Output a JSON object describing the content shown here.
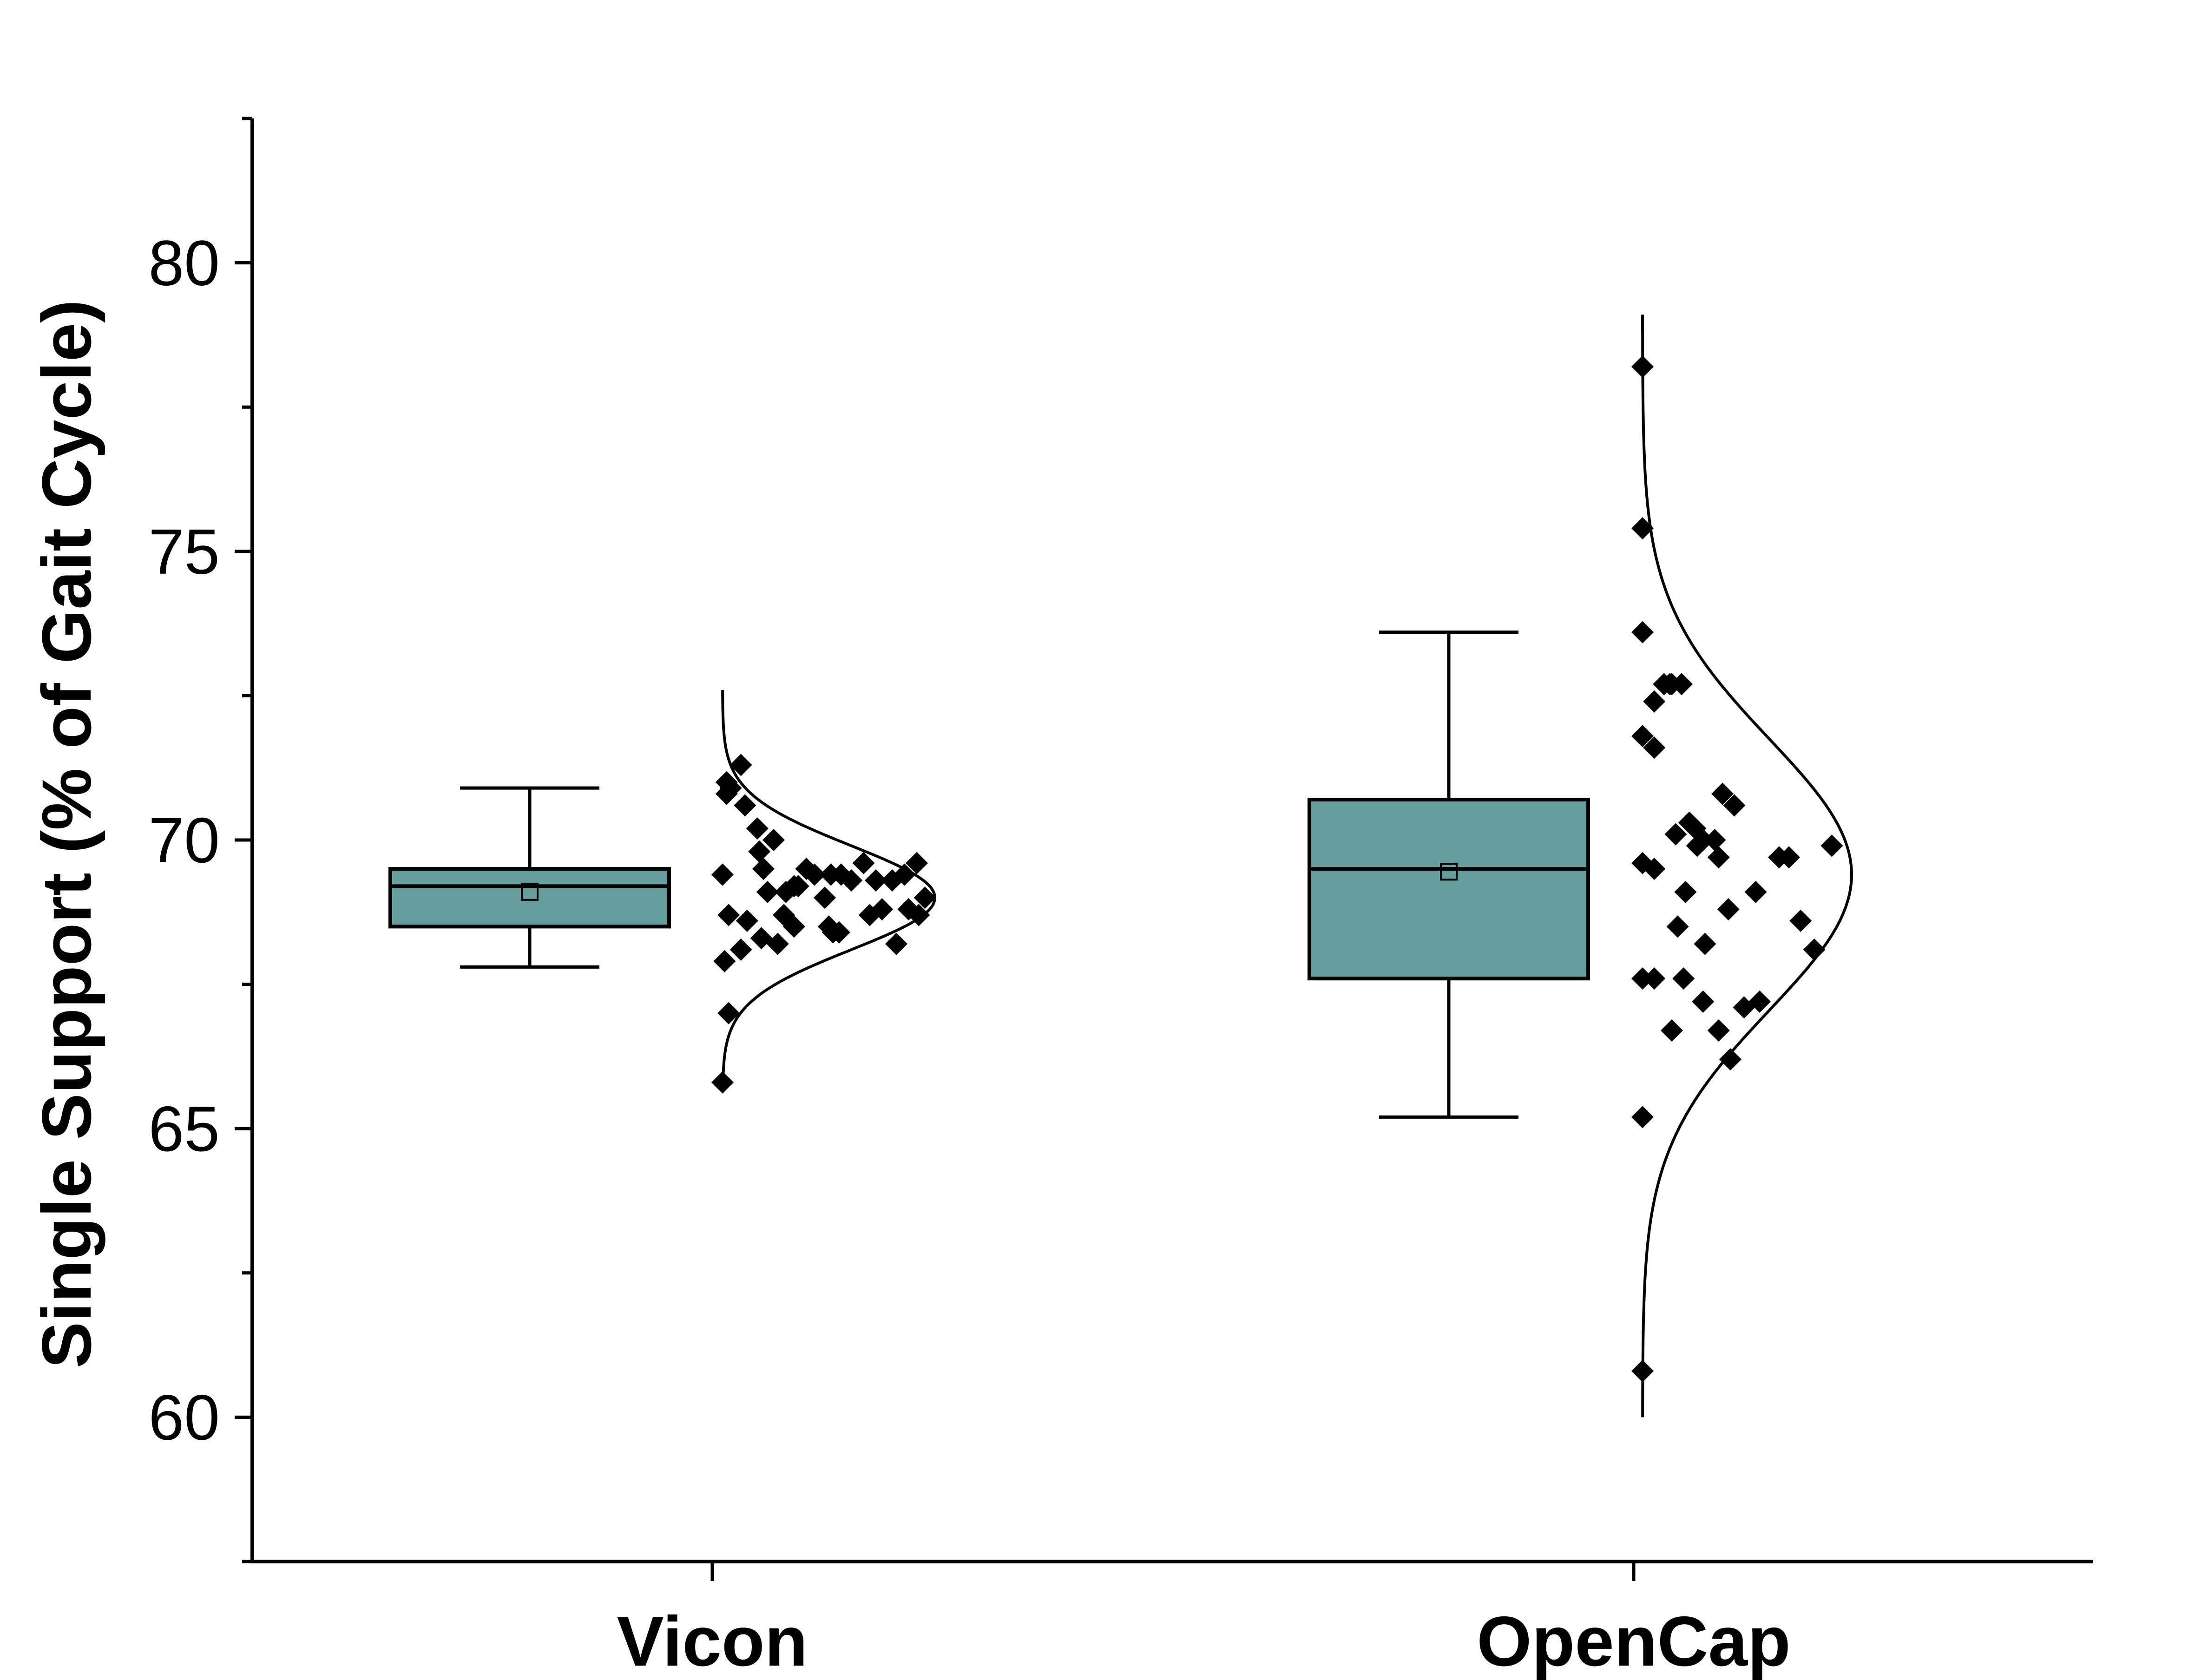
{
  "chart_data": {
    "type": "box",
    "ylabel": "Single Support (% of Gait Cycle)",
    "xlabel": "",
    "ylim": [
      57.5,
      82.5
    ],
    "yticks": [
      60,
      65,
      70,
      75,
      80
    ],
    "categories": [
      "Vicon",
      "OpenCap"
    ],
    "box_color": "#669E9E",
    "line_color": "#000000",
    "groups": [
      {
        "name": "Vicon",
        "box": {
          "whisker_low": 67.8,
          "q1": 68.5,
          "median": 69.2,
          "q3": 69.5,
          "whisker_high": 70.9,
          "mean": 69.1
        },
        "normal_curve": {
          "mean": 69.0,
          "sd": 0.9,
          "y_min": 65.8,
          "y_max": 72.6
        },
        "points": [
          [
            0.02,
            71.0
          ],
          [
            0.09,
            71.3
          ],
          [
            0.02,
            70.8
          ],
          [
            0.04,
            70.9
          ],
          [
            0.11,
            70.6
          ],
          [
            0.17,
            70.2
          ],
          [
            0.25,
            70.0
          ],
          [
            0.18,
            69.8
          ],
          [
            0.2,
            69.5
          ],
          [
            0.41,
            69.5
          ],
          [
            0.69,
            69.6
          ],
          [
            0.95,
            69.6
          ],
          [
            0.0,
            69.4
          ],
          [
            0.45,
            69.4
          ],
          [
            0.53,
            69.4
          ],
          [
            0.58,
            69.4
          ],
          [
            0.63,
            69.3
          ],
          [
            0.75,
            69.3
          ],
          [
            0.83,
            69.3
          ],
          [
            0.89,
            69.4
          ],
          [
            0.35,
            69.2
          ],
          [
            0.37,
            69.2
          ],
          [
            0.22,
            69.1
          ],
          [
            0.31,
            69.1
          ],
          [
            0.5,
            69.0
          ],
          [
            0.99,
            69.0
          ],
          [
            0.03,
            68.7
          ],
          [
            0.12,
            68.6
          ],
          [
            0.3,
            68.7
          ],
          [
            0.35,
            68.5
          ],
          [
            0.52,
            68.5
          ],
          [
            0.72,
            68.7
          ],
          [
            0.78,
            68.8
          ],
          [
            0.91,
            68.8
          ],
          [
            0.96,
            68.7
          ],
          [
            0.19,
            68.3
          ],
          [
            0.27,
            68.2
          ],
          [
            0.54,
            68.4
          ],
          [
            0.57,
            68.4
          ],
          [
            0.85,
            68.2
          ],
          [
            0.09,
            68.1
          ],
          [
            0.01,
            67.9
          ],
          [
            0.03,
            67.0
          ],
          [
            0.0,
            65.8
          ]
        ]
      },
      {
        "name": "OpenCap",
        "box": {
          "whisker_low": 65.2,
          "q1": 67.6,
          "median": 69.5,
          "q3": 70.7,
          "whisker_high": 73.6,
          "mean": 69.45
        },
        "normal_curve": {
          "mean": 69.4,
          "sd": 2.35,
          "y_min": 60.0,
          "y_max": 79.1
        },
        "points": [
          [
            0.0,
            78.2
          ],
          [
            0.0,
            75.4
          ],
          [
            0.0,
            73.6
          ],
          [
            0.11,
            72.7
          ],
          [
            0.14,
            72.7
          ],
          [
            0.15,
            72.7
          ],
          [
            0.2,
            72.7
          ],
          [
            0.06,
            72.4
          ],
          [
            0.0,
            71.8
          ],
          [
            0.06,
            71.6
          ],
          [
            0.41,
            70.8
          ],
          [
            0.47,
            70.6
          ],
          [
            0.24,
            70.3
          ],
          [
            0.27,
            70.2
          ],
          [
            0.17,
            70.1
          ],
          [
            0.31,
            70.0
          ],
          [
            0.37,
            70.0
          ],
          [
            0.28,
            69.9
          ],
          [
            0.97,
            69.9
          ],
          [
            0.39,
            69.7
          ],
          [
            0.7,
            69.7
          ],
          [
            0.75,
            69.7
          ],
          [
            0.0,
            69.6
          ],
          [
            0.06,
            69.5
          ],
          [
            0.22,
            69.1
          ],
          [
            0.58,
            69.1
          ],
          [
            0.44,
            68.8
          ],
          [
            0.18,
            68.5
          ],
          [
            0.81,
            68.6
          ],
          [
            0.32,
            68.2
          ],
          [
            0.88,
            68.1
          ],
          [
            0.0,
            67.6
          ],
          [
            0.06,
            67.6
          ],
          [
            0.21,
            67.6
          ],
          [
            0.31,
            67.2
          ],
          [
            0.52,
            67.1
          ],
          [
            0.6,
            67.2
          ],
          [
            0.15,
            66.7
          ],
          [
            0.39,
            66.7
          ],
          [
            0.45,
            66.2
          ],
          [
            0.0,
            65.2
          ],
          [
            0.0,
            60.8
          ]
        ]
      }
    ]
  }
}
